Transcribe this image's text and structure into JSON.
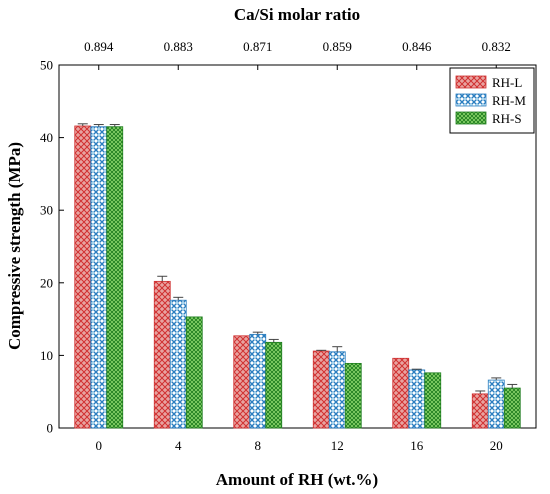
{
  "chart_data": {
    "type": "bar",
    "xlabel": "Amount of RH (wt.%)",
    "ylabel": "Compressive strength (MPa)",
    "top_axis_label": "Ca/Si molar ratio",
    "categories": [
      "0",
      "4",
      "8",
      "12",
      "16",
      "20"
    ],
    "top_categories": [
      "0.894",
      "0.883",
      "0.871",
      "0.859",
      "0.846",
      "0.832"
    ],
    "ylim": [
      0,
      50
    ],
    "yticks": [
      0,
      10,
      20,
      30,
      40,
      50
    ],
    "grid": false,
    "legend_position": "top-right",
    "series": [
      {
        "name": "RH-L",
        "values": [
          41.6,
          20.2,
          12.7,
          10.6,
          9.6,
          4.7
        ],
        "errors": [
          0.3,
          0.7,
          0.0,
          0.1,
          0.0,
          0.4
        ],
        "color": "#e8a3a0",
        "hatch": "#d03030"
      },
      {
        "name": "RH-M",
        "values": [
          41.5,
          17.6,
          12.9,
          10.5,
          8.0,
          6.6
        ],
        "errors": [
          0.3,
          0.4,
          0.3,
          0.7,
          0.1,
          0.3
        ],
        "color": "#a8d8f0",
        "hatch": "#2a7ec0"
      },
      {
        "name": "RH-S",
        "values": [
          41.5,
          15.3,
          11.8,
          8.9,
          7.6,
          5.5
        ],
        "errors": [
          0.3,
          0.0,
          0.4,
          0.0,
          0.0,
          0.5
        ],
        "color": "#8ed86e",
        "hatch": "#1e7d1e"
      }
    ]
  }
}
